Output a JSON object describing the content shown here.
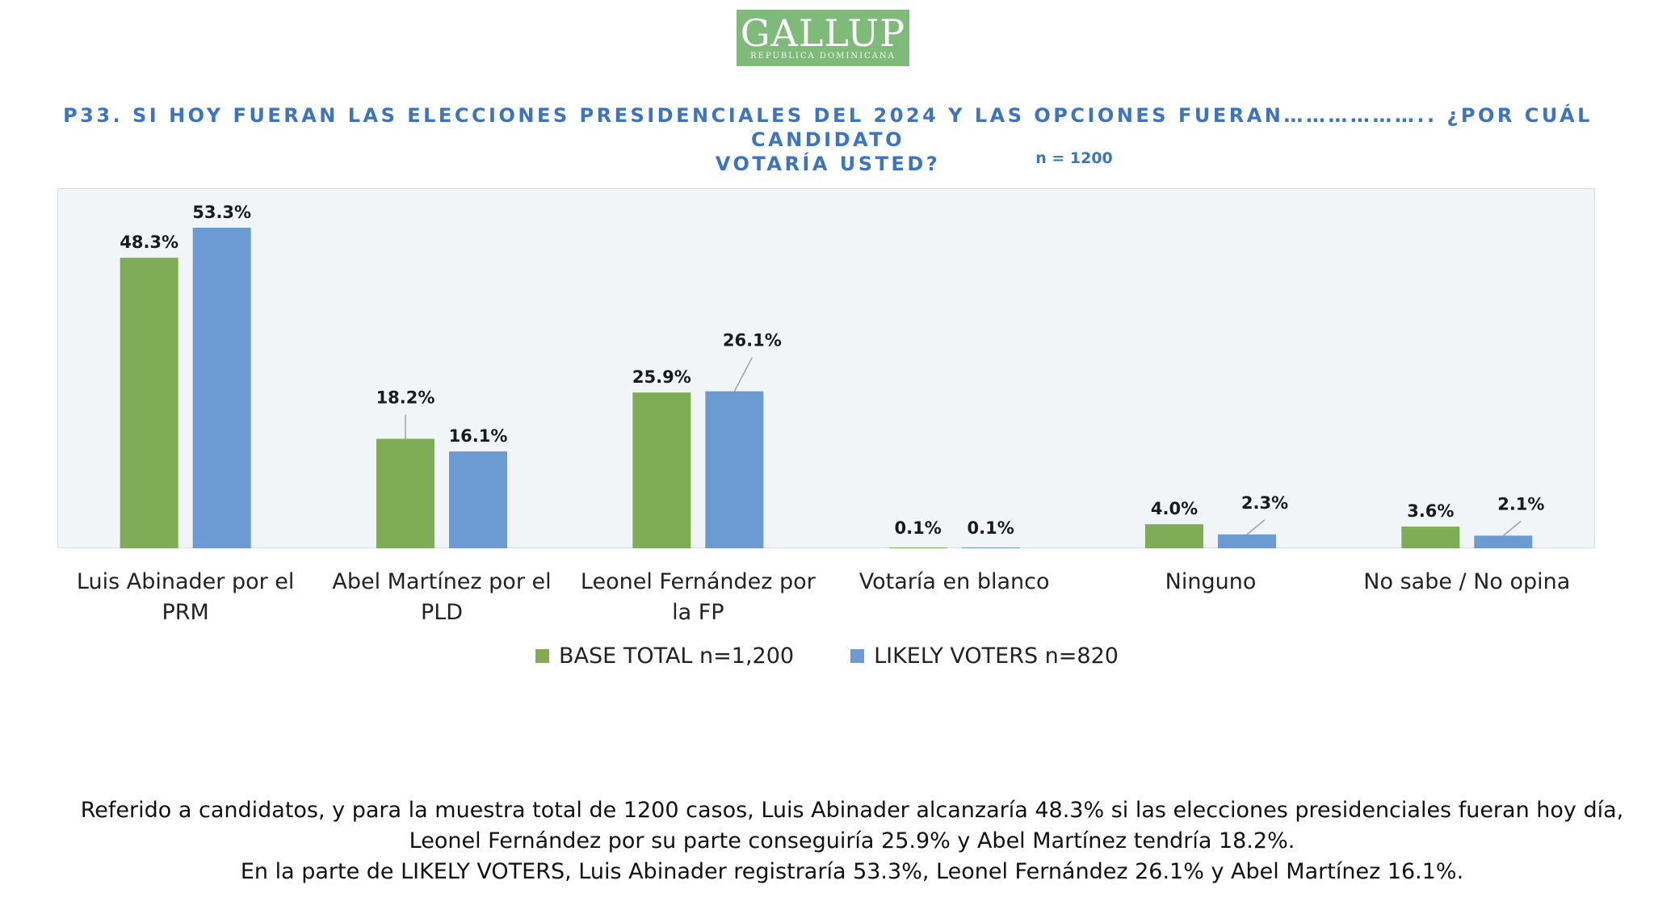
{
  "logo": {
    "main": "GALLUP",
    "sub": "REPÚBLICA DOMINICANA"
  },
  "header": {
    "title_line1": "P33.  SI HOY FUERAN LAS ELECCIONES PRESIDENCIALES DEL 2024 Y LAS OPCIONES FUERAN……………….. ¿POR CUÁL CANDIDATO",
    "title_line2": "VOTARÍA USTED?",
    "n_note": "n = 1200"
  },
  "colors": {
    "base_total": "#7fac57",
    "likely_voters": "#6b9bd2",
    "plot_bg": "#f2f5f8",
    "title": "#3d74c0"
  },
  "chart_data": {
    "type": "bar",
    "categories": [
      [
        "Luis Abinader por el",
        "PRM"
      ],
      [
        "Abel Martínez por el",
        "PLD"
      ],
      [
        "Leonel Fernández por",
        "la FP"
      ],
      [
        "Votaría en blanco"
      ],
      [
        "Ninguno"
      ],
      [
        "No sabe / No opina"
      ]
    ],
    "series": [
      {
        "name": "BASE TOTAL n=1,200",
        "values": [
          48.3,
          18.2,
          25.9,
          0.1,
          4.0,
          3.6
        ],
        "labels": [
          "48.3%",
          "18.2%",
          "25.9%",
          "0.1%",
          "4.0%",
          "3.6%"
        ]
      },
      {
        "name": "LIKELY VOTERS n=820",
        "values": [
          53.3,
          16.1,
          26.1,
          0.1,
          2.3,
          2.1
        ],
        "labels": [
          "53.3%",
          "16.1%",
          "26.1%",
          "0.1%",
          "2.3%",
          "2.1%"
        ]
      }
    ],
    "ylim": [
      0,
      55
    ],
    "grid": false,
    "legend_position": "bottom"
  },
  "summary": {
    "line1": "Referido a candidatos, y para la muestra total de 1200 casos, Luis Abinader alcanzaría 48.3% si las elecciones presidenciales fueran hoy día,",
    "line2": "Leonel Fernández por su parte conseguiría 25.9% y Abel Martínez tendría 18.2%.",
    "line3": "En la parte de LIKELY VOTERS, Luis Abinader registraría 53.3%, Leonel Fernández 26.1% y Abel Martínez 16.1%."
  }
}
